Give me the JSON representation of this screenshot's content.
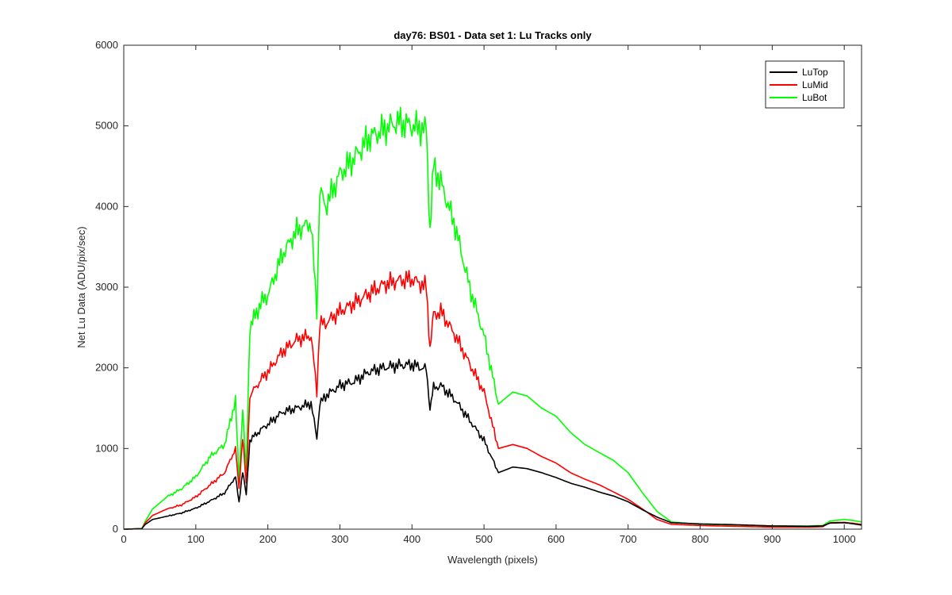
{
  "chart_data": {
    "type": "line",
    "title": "day76: BS01 - Data set 1: Lu Tracks only",
    "xlabel": "Wavelength (pixels)",
    "ylabel": "Net Lu Data (ADU/pix/sec)",
    "xlim": [
      0,
      1024
    ],
    "ylim": [
      0,
      6000
    ],
    "xticks": [
      0,
      100,
      200,
      300,
      400,
      500,
      600,
      700,
      800,
      900,
      1000
    ],
    "yticks": [
      0,
      1000,
      2000,
      3000,
      4000,
      5000,
      6000
    ],
    "xtick_labels": [
      "0",
      "100",
      "200",
      "300",
      "400",
      "500",
      "600",
      "700",
      "800",
      "900",
      "1000"
    ],
    "ytick_labels": [
      "0",
      "1000",
      "2000",
      "3000",
      "4000",
      "5000",
      "6000"
    ],
    "grid": false,
    "legend_position": "top-right",
    "series": [
      {
        "name": "LuTop",
        "color": "#000000",
        "x": [
          0,
          25,
          30,
          40,
          60,
          80,
          100,
          120,
          140,
          155,
          160,
          165,
          170,
          175,
          190,
          200,
          220,
          240,
          260,
          268,
          272,
          280,
          300,
          320,
          340,
          360,
          380,
          400,
          420,
          425,
          430,
          440,
          460,
          480,
          500,
          520,
          540,
          560,
          580,
          600,
          620,
          640,
          660,
          680,
          700,
          720,
          740,
          760,
          800,
          850,
          900,
          950,
          970,
          980,
          1000,
          1010,
          1024
        ],
        "y": [
          0,
          5,
          60,
          120,
          160,
          200,
          260,
          350,
          450,
          650,
          330,
          720,
          420,
          1100,
          1230,
          1300,
          1450,
          1500,
          1560,
          1130,
          1550,
          1650,
          1780,
          1830,
          1950,
          2000,
          2030,
          2040,
          1980,
          1500,
          1750,
          1780,
          1600,
          1350,
          1100,
          700,
          770,
          750,
          700,
          640,
          570,
          520,
          460,
          410,
          340,
          240,
          150,
          80,
          65,
          55,
          40,
          35,
          40,
          75,
          80,
          70,
          50
        ]
      },
      {
        "name": "LuMid",
        "color": "#ff0000",
        "x": [
          0,
          25,
          30,
          40,
          60,
          80,
          100,
          120,
          140,
          155,
          160,
          165,
          170,
          175,
          190,
          200,
          220,
          240,
          260,
          268,
          272,
          280,
          300,
          320,
          340,
          360,
          380,
          400,
          420,
          425,
          430,
          440,
          460,
          480,
          500,
          520,
          540,
          560,
          580,
          600,
          620,
          640,
          660,
          680,
          700,
          720,
          740,
          760,
          800,
          850,
          900,
          950,
          970,
          980,
          1000,
          1010,
          1024
        ],
        "y": [
          0,
          5,
          80,
          170,
          250,
          300,
          400,
          550,
          700,
          1000,
          500,
          1150,
          550,
          1650,
          1850,
          1950,
          2200,
          2350,
          2400,
          1700,
          2550,
          2550,
          2700,
          2800,
          2920,
          3030,
          3080,
          3100,
          3000,
          2250,
          2650,
          2700,
          2400,
          2050,
          1700,
          1000,
          1050,
          1000,
          900,
          820,
          700,
          620,
          550,
          460,
          370,
          250,
          120,
          60,
          45,
          35,
          25,
          25,
          30,
          80,
          85,
          75,
          60
        ]
      },
      {
        "name": "LuBot",
        "color": "#00ff00",
        "x": [
          0,
          25,
          30,
          40,
          60,
          80,
          100,
          120,
          140,
          155,
          160,
          165,
          170,
          175,
          190,
          200,
          220,
          240,
          260,
          268,
          272,
          280,
          300,
          320,
          340,
          360,
          380,
          400,
          420,
          425,
          430,
          440,
          460,
          480,
          500,
          520,
          540,
          560,
          580,
          600,
          620,
          640,
          660,
          680,
          700,
          720,
          740,
          760,
          800,
          850,
          900,
          950,
          970,
          980,
          1000,
          1010,
          1024
        ],
        "y": [
          0,
          5,
          100,
          250,
          400,
          500,
          650,
          900,
          1050,
          1600,
          600,
          1500,
          700,
          2500,
          2800,
          2900,
          3400,
          3700,
          3800,
          2700,
          4200,
          4000,
          4400,
          4600,
          4850,
          4950,
          5050,
          5000,
          4950,
          3700,
          4500,
          4300,
          3750,
          3000,
          2400,
          1550,
          1700,
          1650,
          1500,
          1400,
          1200,
          1050,
          950,
          850,
          700,
          450,
          220,
          90,
          60,
          50,
          40,
          40,
          45,
          100,
          120,
          110,
          90
        ]
      }
    ]
  }
}
